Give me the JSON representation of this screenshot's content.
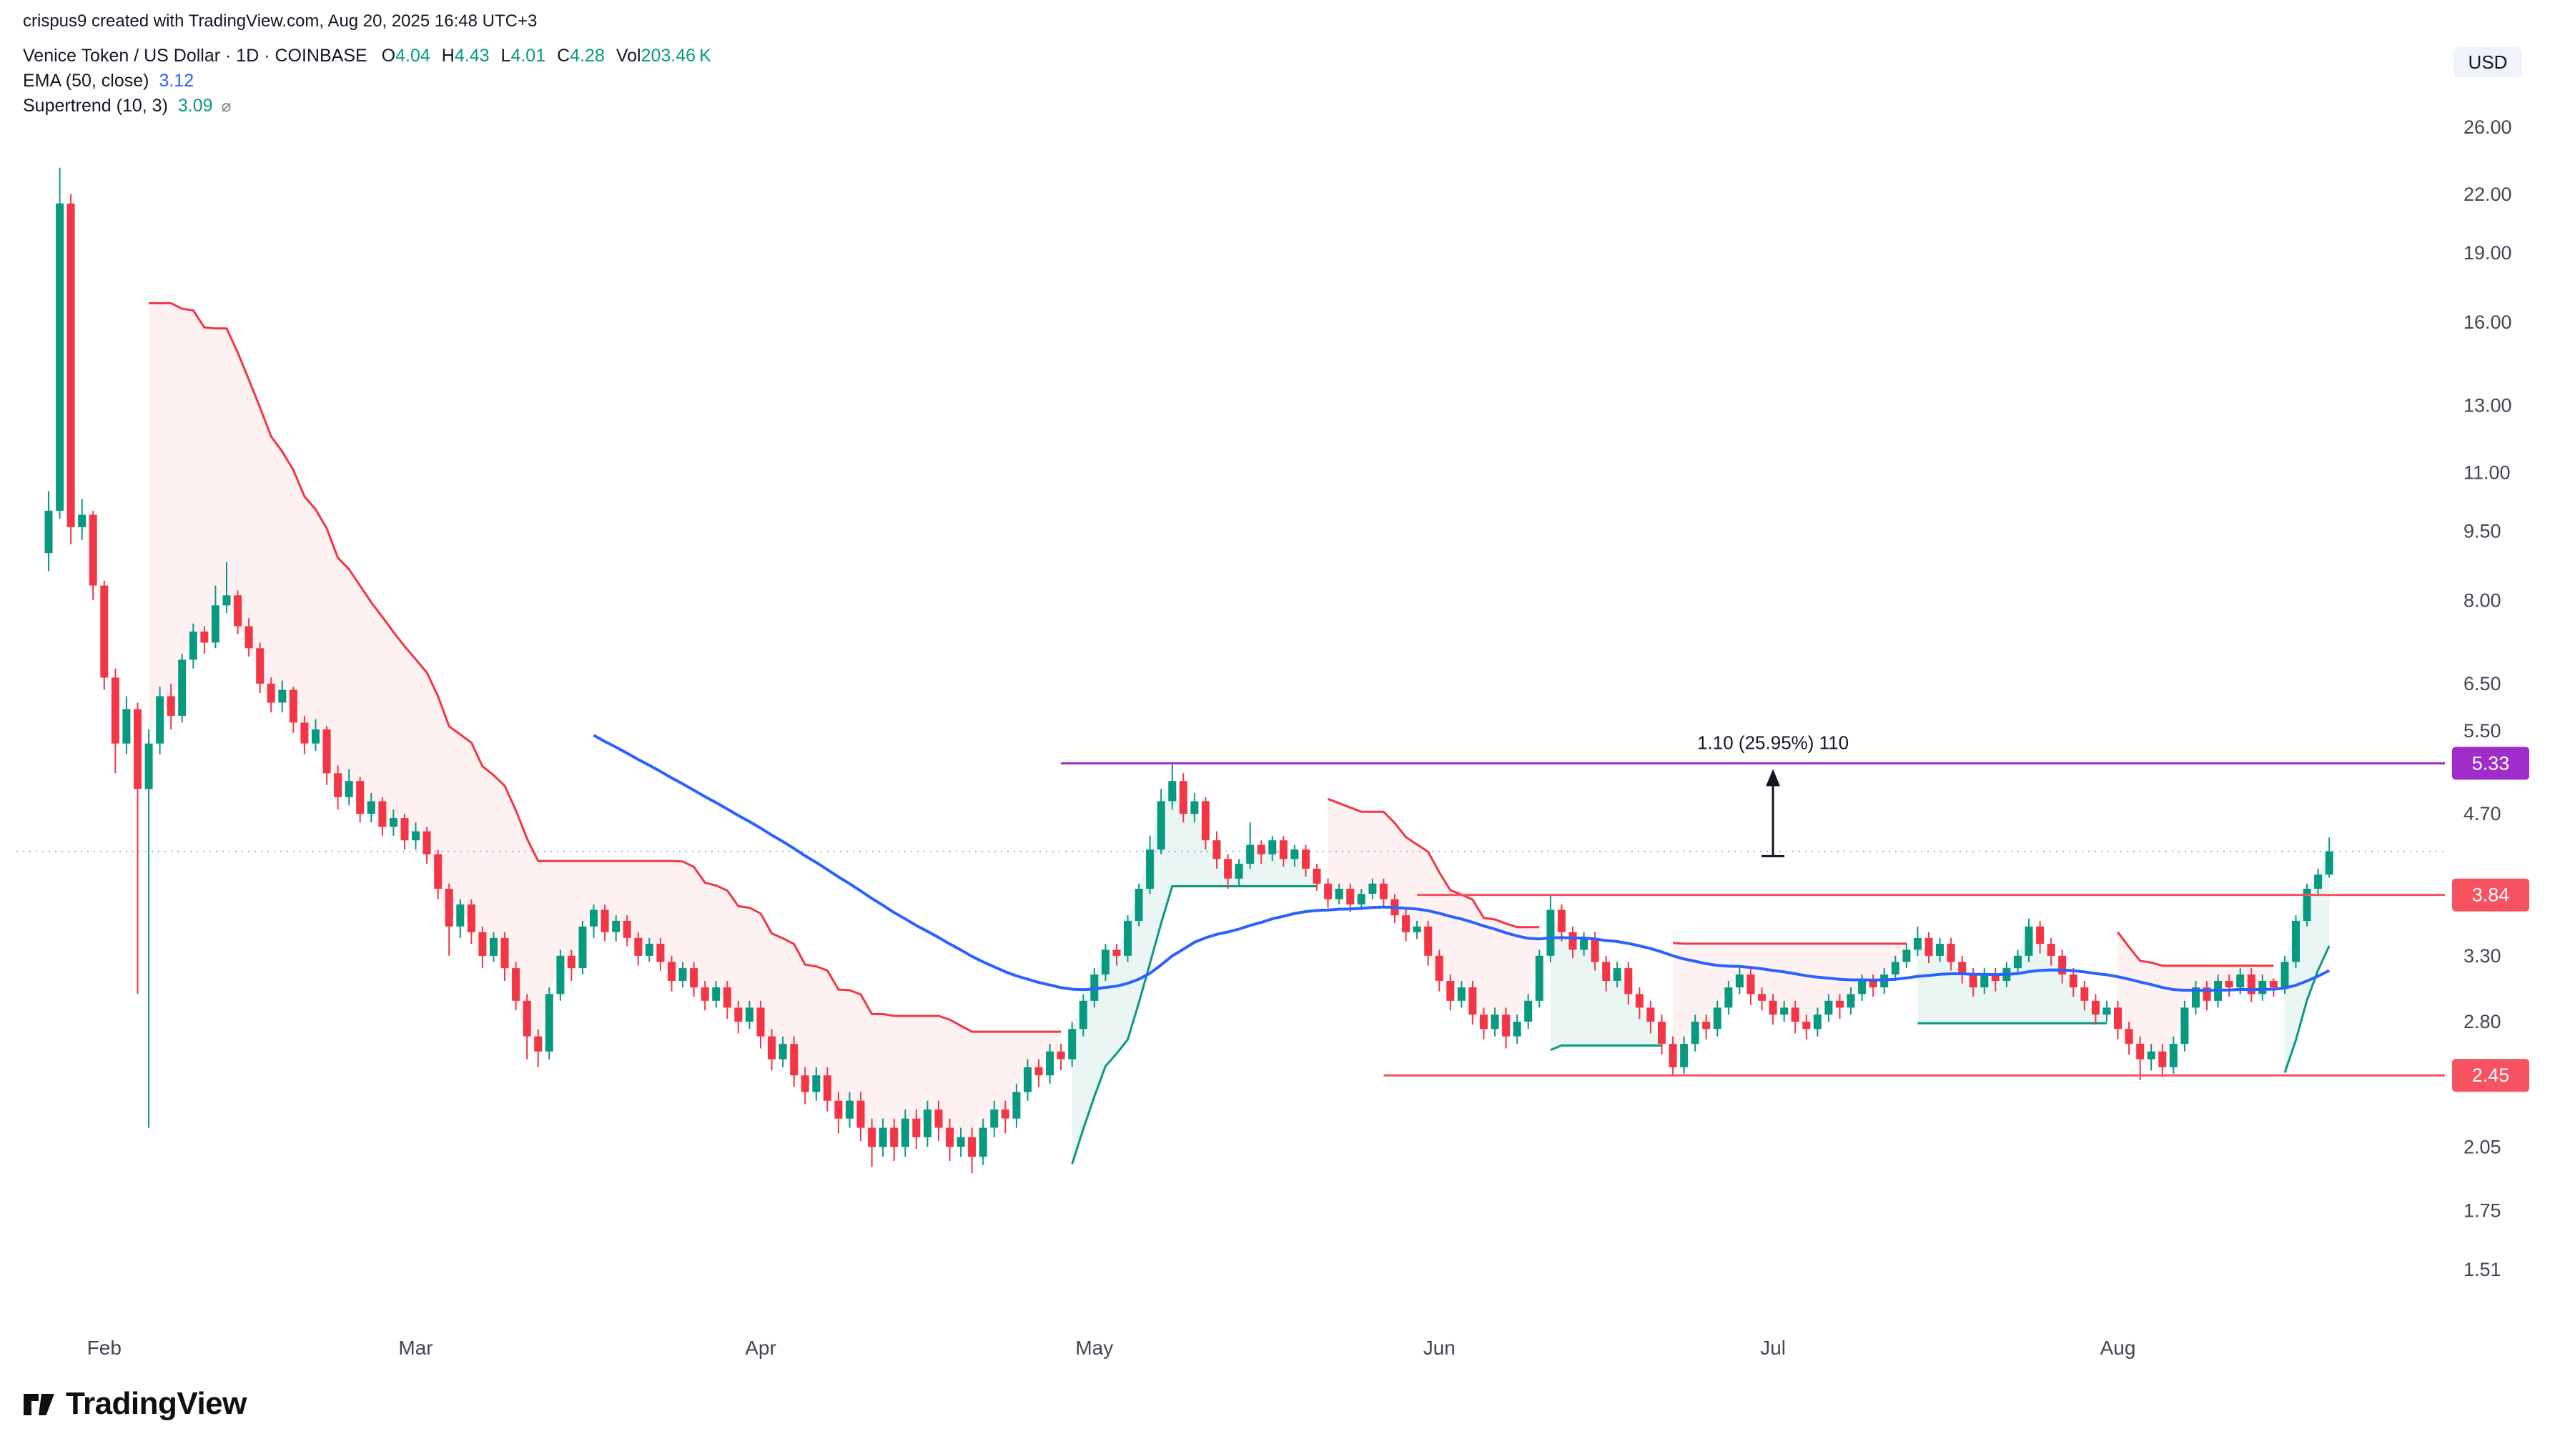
{
  "attribution": "crispus9 created with TradingView.com, Aug 20, 2025 16:48 UTC+3",
  "header": {
    "symbol_title": "Venice Token / US Dollar · 1D · COINBASE",
    "ohlc": {
      "o_label": "O",
      "o": "4.04",
      "h_label": "H",
      "h": "4.43",
      "l_label": "L",
      "l": "4.01",
      "c_label": "C",
      "c": "4.28",
      "vol_label": "Vol",
      "vol": "203.46 K"
    },
    "indicators": [
      {
        "name": "EMA (50, close)",
        "value": "3.12"
      },
      {
        "name": "Supertrend (10, 3)",
        "value": "3.09",
        "icon": "⌀"
      }
    ]
  },
  "price_axis": {
    "currency": "USD"
  },
  "watermark": "TradingView",
  "chart_data": {
    "type": "candlestick",
    "title": "Venice Token / US Dollar",
    "timeframe": "1D",
    "exchange": "COINBASE",
    "scale": "log",
    "ylim": [
      1.4,
      29
    ],
    "y_ticks": [
      26,
      22,
      19,
      16,
      13,
      11,
      9.5,
      8,
      6.5,
      5.5,
      4.7,
      3.3,
      2.8,
      2.05,
      1.75,
      1.51
    ],
    "months": [
      {
        "label": "Feb",
        "index": 5
      },
      {
        "label": "Mar",
        "index": 33
      },
      {
        "label": "Apr",
        "index": 64
      },
      {
        "label": "May",
        "index": 94
      },
      {
        "label": "Jun",
        "index": 125
      },
      {
        "label": "Jul",
        "index": 155
      },
      {
        "label": "Aug",
        "index": 186
      }
    ],
    "colors": {
      "up": "#089981",
      "down": "#f23645",
      "ema": "#2962ff",
      "supertrend_up": "#089981",
      "supertrend_down": "#f23645",
      "hline_pink": "#f7525f",
      "hline_purple": "#a02cc9"
    },
    "indicators": [
      {
        "type": "ema",
        "length": 50,
        "source": "close",
        "last_value": 3.12
      },
      {
        "type": "supertrend",
        "atr_length": 10,
        "multiplier": 3,
        "last_value": 3.09
      }
    ],
    "drawings": {
      "horizontal_lines": [
        {
          "price": 5.33,
          "label": "5.33",
          "color": "#a02cc9",
          "start_index": 91
        },
        {
          "price": 3.84,
          "label": "3.84",
          "color": "#f7525f",
          "start_index": 123
        },
        {
          "price": 2.45,
          "label": "2.45",
          "color": "#f7525f",
          "start_index": 120
        }
      ],
      "price_range": {
        "label": "1.10 (25.95%) 110",
        "from_price": 4.23,
        "to_price": 5.33,
        "index": 155
      },
      "last_price_line": {
        "price": 4.28,
        "color": "#2962ff"
      }
    },
    "candles": [
      [
        9.0,
        10.5,
        8.6,
        10.0
      ],
      [
        10.0,
        23.5,
        9.8,
        21.5
      ],
      [
        21.5,
        22.0,
        9.2,
        9.6
      ],
      [
        9.6,
        10.3,
        9.3,
        9.9
      ],
      [
        9.9,
        10.0,
        8.0,
        8.3
      ],
      [
        8.3,
        8.4,
        6.4,
        6.6
      ],
      [
        6.6,
        6.75,
        5.2,
        5.6
      ],
      [
        5.6,
        6.3,
        5.45,
        6.1
      ],
      [
        6.1,
        6.2,
        3.0,
        5.0
      ],
      [
        5.0,
        5.8,
        2.15,
        5.6
      ],
      [
        5.6,
        6.45,
        5.45,
        6.3
      ],
      [
        6.3,
        6.5,
        5.8,
        6.0
      ],
      [
        6.0,
        7.0,
        5.9,
        6.9
      ],
      [
        6.9,
        7.55,
        6.75,
        7.4
      ],
      [
        7.4,
        7.5,
        7.0,
        7.2
      ],
      [
        7.2,
        8.3,
        7.1,
        7.9
      ],
      [
        7.9,
        8.8,
        7.75,
        8.1
      ],
      [
        8.1,
        8.2,
        7.35,
        7.5
      ],
      [
        7.5,
        7.65,
        6.95,
        7.1
      ],
      [
        7.1,
        7.2,
        6.35,
        6.5
      ],
      [
        6.5,
        6.6,
        6.05,
        6.2
      ],
      [
        6.2,
        6.55,
        6.05,
        6.4
      ],
      [
        6.4,
        6.45,
        5.75,
        5.9
      ],
      [
        5.9,
        6.0,
        5.45,
        5.6
      ],
      [
        5.6,
        5.95,
        5.5,
        5.8
      ],
      [
        5.8,
        5.85,
        5.05,
        5.2
      ],
      [
        5.2,
        5.3,
        4.75,
        4.9
      ],
      [
        4.9,
        5.25,
        4.8,
        5.1
      ],
      [
        5.1,
        5.15,
        4.6,
        4.7
      ],
      [
        4.7,
        4.95,
        4.6,
        4.85
      ],
      [
        4.85,
        4.9,
        4.45,
        4.55
      ],
      [
        4.55,
        4.75,
        4.45,
        4.65
      ],
      [
        4.65,
        4.7,
        4.3,
        4.4
      ],
      [
        4.4,
        4.6,
        4.3,
        4.5
      ],
      [
        4.5,
        4.55,
        4.15,
        4.25
      ],
      [
        4.25,
        4.3,
        3.8,
        3.9
      ],
      [
        3.9,
        3.95,
        3.3,
        3.55
      ],
      [
        3.55,
        3.8,
        3.45,
        3.75
      ],
      [
        3.75,
        3.8,
        3.4,
        3.5
      ],
      [
        3.5,
        3.55,
        3.2,
        3.3
      ],
      [
        3.3,
        3.5,
        3.25,
        3.45
      ],
      [
        3.45,
        3.5,
        3.1,
        3.2
      ],
      [
        3.2,
        3.25,
        2.88,
        2.95
      ],
      [
        2.95,
        3.0,
        2.55,
        2.7
      ],
      [
        2.7,
        2.75,
        2.5,
        2.6
      ],
      [
        2.6,
        3.05,
        2.55,
        3.0
      ],
      [
        3.0,
        3.35,
        2.95,
        3.3
      ],
      [
        3.3,
        3.35,
        3.1,
        3.2
      ],
      [
        3.2,
        3.6,
        3.15,
        3.55
      ],
      [
        3.55,
        3.75,
        3.45,
        3.7
      ],
      [
        3.7,
        3.75,
        3.42,
        3.5
      ],
      [
        3.5,
        3.65,
        3.42,
        3.6
      ],
      [
        3.6,
        3.65,
        3.38,
        3.45
      ],
      [
        3.45,
        3.5,
        3.22,
        3.3
      ],
      [
        3.3,
        3.45,
        3.25,
        3.4
      ],
      [
        3.4,
        3.45,
        3.18,
        3.25
      ],
      [
        3.25,
        3.3,
        3.02,
        3.1
      ],
      [
        3.1,
        3.25,
        3.05,
        3.2
      ],
      [
        3.2,
        3.25,
        2.98,
        3.05
      ],
      [
        3.05,
        3.1,
        2.88,
        2.95
      ],
      [
        2.95,
        3.1,
        2.9,
        3.05
      ],
      [
        3.05,
        3.1,
        2.82,
        2.9
      ],
      [
        2.9,
        2.95,
        2.72,
        2.8
      ],
      [
        2.8,
        2.95,
        2.75,
        2.9
      ],
      [
        2.9,
        2.95,
        2.62,
        2.7
      ],
      [
        2.7,
        2.75,
        2.48,
        2.55
      ],
      [
        2.55,
        2.7,
        2.5,
        2.65
      ],
      [
        2.65,
        2.7,
        2.38,
        2.45
      ],
      [
        2.45,
        2.5,
        2.28,
        2.35
      ],
      [
        2.35,
        2.5,
        2.3,
        2.45
      ],
      [
        2.45,
        2.5,
        2.24,
        2.3
      ],
      [
        2.3,
        2.35,
        2.12,
        2.2
      ],
      [
        2.2,
        2.35,
        2.15,
        2.3
      ],
      [
        2.3,
        2.35,
        2.08,
        2.15
      ],
      [
        2.15,
        2.2,
        1.95,
        2.05
      ],
      [
        2.05,
        2.2,
        2.0,
        2.15
      ],
      [
        2.15,
        2.2,
        1.98,
        2.05
      ],
      [
        2.05,
        2.25,
        2.0,
        2.2
      ],
      [
        2.2,
        2.25,
        2.04,
        2.1
      ],
      [
        2.1,
        2.3,
        2.05,
        2.25
      ],
      [
        2.25,
        2.3,
        2.08,
        2.15
      ],
      [
        2.15,
        2.2,
        1.98,
        2.05
      ],
      [
        2.05,
        2.15,
        2.0,
        2.1
      ],
      [
        2.1,
        2.15,
        1.92,
        2.0
      ],
      [
        2.0,
        2.2,
        1.96,
        2.15
      ],
      [
        2.15,
        2.3,
        2.1,
        2.25
      ],
      [
        2.25,
        2.3,
        2.12,
        2.2
      ],
      [
        2.2,
        2.4,
        2.15,
        2.35
      ],
      [
        2.35,
        2.55,
        2.3,
        2.5
      ],
      [
        2.5,
        2.55,
        2.38,
        2.45
      ],
      [
        2.45,
        2.65,
        2.4,
        2.6
      ],
      [
        2.6,
        2.65,
        2.48,
        2.55
      ],
      [
        2.55,
        2.8,
        2.5,
        2.75
      ],
      [
        2.75,
        3.0,
        2.7,
        2.95
      ],
      [
        2.95,
        3.2,
        2.9,
        3.15
      ],
      [
        3.15,
        3.4,
        3.1,
        3.35
      ],
      [
        3.35,
        3.4,
        3.22,
        3.3
      ],
      [
        3.3,
        3.65,
        3.25,
        3.6
      ],
      [
        3.6,
        3.95,
        3.55,
        3.9
      ],
      [
        3.9,
        4.45,
        3.85,
        4.3
      ],
      [
        4.3,
        5.0,
        4.25,
        4.85
      ],
      [
        4.85,
        5.33,
        4.75,
        5.1
      ],
      [
        5.1,
        5.2,
        4.6,
        4.7
      ],
      [
        4.7,
        4.95,
        4.6,
        4.85
      ],
      [
        4.85,
        4.9,
        4.3,
        4.4
      ],
      [
        4.4,
        4.5,
        4.1,
        4.2
      ],
      [
        4.2,
        4.25,
        3.9,
        4.0
      ],
      [
        4.0,
        4.2,
        3.92,
        4.15
      ],
      [
        4.15,
        4.6,
        4.1,
        4.35
      ],
      [
        4.35,
        4.4,
        4.15,
        4.25
      ],
      [
        4.25,
        4.45,
        4.18,
        4.4
      ],
      [
        4.4,
        4.45,
        4.12,
        4.2
      ],
      [
        4.2,
        4.35,
        4.12,
        4.3
      ],
      [
        4.3,
        4.35,
        4.02,
        4.1
      ],
      [
        4.1,
        4.15,
        3.88,
        3.95
      ],
      [
        3.95,
        4.0,
        3.72,
        3.8
      ],
      [
        3.8,
        3.95,
        3.75,
        3.9
      ],
      [
        3.9,
        3.95,
        3.68,
        3.75
      ],
      [
        3.75,
        3.9,
        3.7,
        3.85
      ],
      [
        3.85,
        4.0,
        3.8,
        3.95
      ],
      [
        3.95,
        4.0,
        3.72,
        3.8
      ],
      [
        3.8,
        3.85,
        3.58,
        3.65
      ],
      [
        3.65,
        3.7,
        3.42,
        3.5
      ],
      [
        3.5,
        3.6,
        3.44,
        3.55
      ],
      [
        3.55,
        3.6,
        3.22,
        3.3
      ],
      [
        3.3,
        3.35,
        3.02,
        3.1
      ],
      [
        3.1,
        3.15,
        2.88,
        2.95
      ],
      [
        2.95,
        3.1,
        2.9,
        3.05
      ],
      [
        3.05,
        3.1,
        2.78,
        2.85
      ],
      [
        2.85,
        2.9,
        2.68,
        2.75
      ],
      [
        2.75,
        2.9,
        2.7,
        2.85
      ],
      [
        2.85,
        2.9,
        2.62,
        2.7
      ],
      [
        2.7,
        2.85,
        2.65,
        2.8
      ],
      [
        2.8,
        3.0,
        2.75,
        2.95
      ],
      [
        2.95,
        3.35,
        2.9,
        3.3
      ],
      [
        3.3,
        3.85,
        3.25,
        3.7
      ],
      [
        3.7,
        3.75,
        3.42,
        3.5
      ],
      [
        3.5,
        3.55,
        3.28,
        3.35
      ],
      [
        3.35,
        3.5,
        3.3,
        3.45
      ],
      [
        3.45,
        3.5,
        3.18,
        3.25
      ],
      [
        3.25,
        3.3,
        3.02,
        3.1
      ],
      [
        3.1,
        3.25,
        3.05,
        3.2
      ],
      [
        3.2,
        3.25,
        2.92,
        3.0
      ],
      [
        3.0,
        3.05,
        2.82,
        2.9
      ],
      [
        2.9,
        2.95,
        2.72,
        2.8
      ],
      [
        2.8,
        2.85,
        2.58,
        2.65
      ],
      [
        2.65,
        2.7,
        2.45,
        2.5
      ],
      [
        2.5,
        2.7,
        2.46,
        2.65
      ],
      [
        2.65,
        2.85,
        2.6,
        2.8
      ],
      [
        2.8,
        2.85,
        2.68,
        2.75
      ],
      [
        2.75,
        2.95,
        2.7,
        2.9
      ],
      [
        2.9,
        3.1,
        2.85,
        3.05
      ],
      [
        3.05,
        3.2,
        3.0,
        3.15
      ],
      [
        3.15,
        3.2,
        2.92,
        3.0
      ],
      [
        3.0,
        3.05,
        2.88,
        2.95
      ],
      [
        2.95,
        3.0,
        2.78,
        2.85
      ],
      [
        2.85,
        2.95,
        2.8,
        2.9
      ],
      [
        2.9,
        2.95,
        2.72,
        2.8
      ],
      [
        2.8,
        2.85,
        2.68,
        2.75
      ],
      [
        2.75,
        2.9,
        2.7,
        2.85
      ],
      [
        2.85,
        3.0,
        2.8,
        2.95
      ],
      [
        2.95,
        3.0,
        2.82,
        2.9
      ],
      [
        2.9,
        3.05,
        2.85,
        3.0
      ],
      [
        3.0,
        3.15,
        2.95,
        3.1
      ],
      [
        3.1,
        3.15,
        2.98,
        3.05
      ],
      [
        3.05,
        3.2,
        3.0,
        3.15
      ],
      [
        3.15,
        3.3,
        3.1,
        3.25
      ],
      [
        3.25,
        3.4,
        3.2,
        3.35
      ],
      [
        3.35,
        3.55,
        3.3,
        3.45
      ],
      [
        3.45,
        3.5,
        3.24,
        3.3
      ],
      [
        3.3,
        3.45,
        3.25,
        3.4
      ],
      [
        3.4,
        3.45,
        3.18,
        3.25
      ],
      [
        3.25,
        3.3,
        3.08,
        3.15
      ],
      [
        3.15,
        3.2,
        2.98,
        3.05
      ],
      [
        3.05,
        3.2,
        3.0,
        3.15
      ],
      [
        3.15,
        3.2,
        3.02,
        3.1
      ],
      [
        3.1,
        3.25,
        3.05,
        3.2
      ],
      [
        3.2,
        3.35,
        3.15,
        3.3
      ],
      [
        3.3,
        3.62,
        3.25,
        3.55
      ],
      [
        3.55,
        3.6,
        3.32,
        3.4
      ],
      [
        3.4,
        3.45,
        3.22,
        3.3
      ],
      [
        3.3,
        3.35,
        3.08,
        3.15
      ],
      [
        3.15,
        3.2,
        2.98,
        3.05
      ],
      [
        3.05,
        3.1,
        2.88,
        2.95
      ],
      [
        2.95,
        3.0,
        2.78,
        2.85
      ],
      [
        2.85,
        2.95,
        2.8,
        2.9
      ],
      [
        2.9,
        2.95,
        2.68,
        2.75
      ],
      [
        2.75,
        2.8,
        2.58,
        2.65
      ],
      [
        2.65,
        2.7,
        2.42,
        2.55
      ],
      [
        2.55,
        2.65,
        2.48,
        2.6
      ],
      [
        2.6,
        2.65,
        2.44,
        2.5
      ],
      [
        2.5,
        2.7,
        2.46,
        2.65
      ],
      [
        2.65,
        2.95,
        2.6,
        2.9
      ],
      [
        2.9,
        3.1,
        2.85,
        3.05
      ],
      [
        3.05,
        3.1,
        2.88,
        2.95
      ],
      [
        2.95,
        3.15,
        2.9,
        3.1
      ],
      [
        3.1,
        3.15,
        2.98,
        3.05
      ],
      [
        3.05,
        3.2,
        3.0,
        3.15
      ],
      [
        3.15,
        3.2,
        2.94,
        3.0
      ],
      [
        3.0,
        3.15,
        2.95,
        3.1
      ],
      [
        3.1,
        3.12,
        2.98,
        3.05
      ],
      [
        3.05,
        3.3,
        3.0,
        3.25
      ],
      [
        3.25,
        3.65,
        3.2,
        3.6
      ],
      [
        3.6,
        3.95,
        3.55,
        3.9
      ],
      [
        3.9,
        4.1,
        3.85,
        4.04
      ],
      [
        4.04,
        4.43,
        4.01,
        4.28
      ]
    ]
  }
}
